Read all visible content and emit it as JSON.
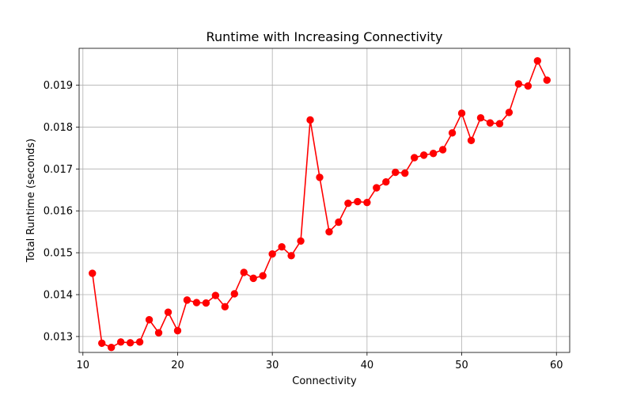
{
  "chart_data": {
    "type": "line",
    "title": "Runtime with Increasing Connectivity",
    "xlabel": "Connectivity",
    "ylabel": "Total Runtime (seconds)",
    "xlim": [
      9.6,
      61.4
    ],
    "ylim": [
      0.01262,
      0.01988
    ],
    "x_ticks": [
      10,
      20,
      30,
      40,
      50,
      60
    ],
    "y_ticks": [
      0.013,
      0.014,
      0.015,
      0.016,
      0.017,
      0.018,
      0.019
    ],
    "x_tick_labels": [
      "10",
      "20",
      "30",
      "40",
      "50",
      "60"
    ],
    "y_tick_labels": [
      "0.013",
      "0.014",
      "0.015",
      "0.016",
      "0.017",
      "0.018",
      "0.019"
    ],
    "grid": true,
    "series": [
      {
        "color": "#ff0000",
        "marker": "circle",
        "x": [
          11,
          12,
          13,
          14,
          15,
          16,
          17,
          18,
          19,
          20,
          21,
          22,
          23,
          24,
          25,
          26,
          27,
          28,
          29,
          30,
          31,
          32,
          33,
          34,
          35,
          36,
          37,
          38,
          39,
          40,
          41,
          42,
          43,
          44,
          45,
          46,
          47,
          48,
          49,
          50,
          51,
          52,
          53,
          54,
          55,
          56,
          57,
          58,
          59
        ],
        "y": [
          0.01451,
          0.01284,
          0.01274,
          0.01287,
          0.01285,
          0.01287,
          0.0134,
          0.01309,
          0.01358,
          0.01314,
          0.01387,
          0.01381,
          0.0138,
          0.01398,
          0.01371,
          0.01402,
          0.01453,
          0.01439,
          0.01445,
          0.01497,
          0.01514,
          0.01493,
          0.01528,
          0.01817,
          0.0168,
          0.0155,
          0.01573,
          0.01618,
          0.01622,
          0.0162,
          0.01655,
          0.01669,
          0.01692,
          0.0169,
          0.01727,
          0.01733,
          0.01737,
          0.01746,
          0.01786,
          0.01833,
          0.01768,
          0.01822,
          0.0181,
          0.01808,
          0.01835,
          0.01903,
          0.01898,
          0.01958,
          0.01912
        ]
      }
    ]
  }
}
